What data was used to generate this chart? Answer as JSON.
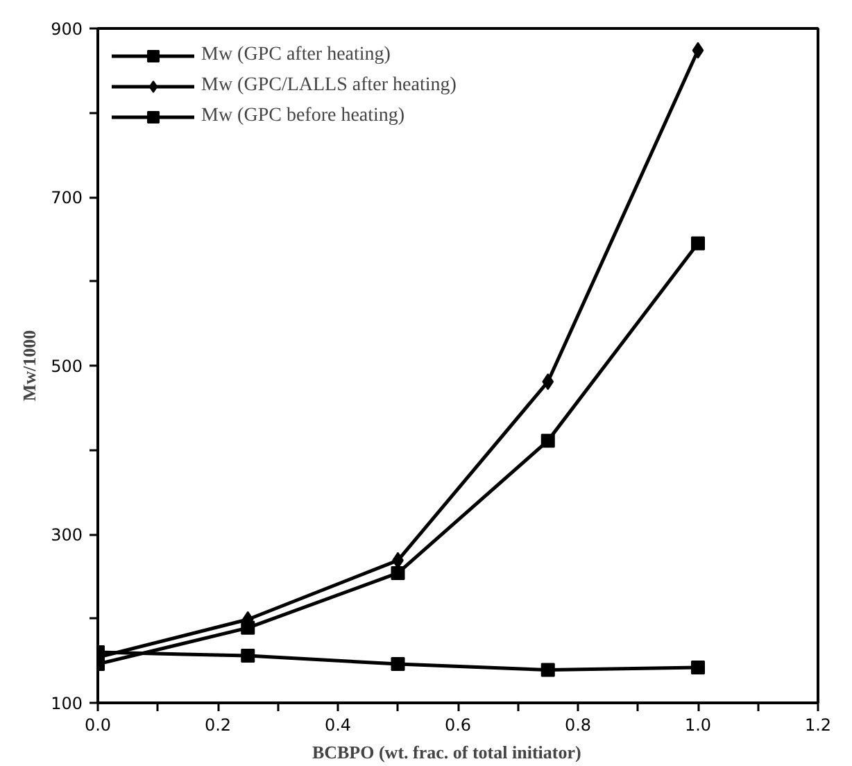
{
  "chart_data": {
    "type": "line",
    "xlabel": "BCBPO  (wt.  frac.  of  total  initiator)",
    "ylabel": "Mw/1000",
    "x": [
      0.0,
      0.25,
      0.5,
      0.75,
      1.0
    ],
    "series": [
      {
        "name": "Mw (GPC after heating)",
        "color": "#000000",
        "marker": "square",
        "values": [
          146,
          189,
          254,
          411,
          645
        ]
      },
      {
        "name": "Mw (GPC/LALLS after heating)",
        "color": "#000000",
        "marker": "diamond",
        "values": [
          154,
          199,
          269,
          481,
          874
        ]
      },
      {
        "name": "Mw (GPC before heating)",
        "color": "#000000",
        "marker": "square",
        "values": [
          160,
          156,
          146,
          139,
          142
        ]
      }
    ],
    "xlim": [
      0,
      1.2
    ],
    "ylim": [
      100,
      900
    ],
    "xticks": [
      {
        "value": 0,
        "label": "0.0"
      },
      {
        "value": 0.1,
        "label": null
      },
      {
        "value": 0.2,
        "label": "0.2"
      },
      {
        "value": 0.3,
        "label": null
      },
      {
        "value": 0.4,
        "label": "0.4"
      },
      {
        "value": 0.5,
        "label": null
      },
      {
        "value": 0.6,
        "label": "0.6"
      },
      {
        "value": 0.7,
        "label": null
      },
      {
        "value": 0.8,
        "label": "0.8"
      },
      {
        "value": 0.9,
        "label": null
      },
      {
        "value": 1.0,
        "label": "1.0"
      },
      {
        "value": 1.1,
        "label": null
      },
      {
        "value": 1.2,
        "label": "1.2"
      }
    ],
    "yticks": [
      100,
      {
        "value": 200,
        "label": null
      },
      300,
      {
        "value": 400,
        "label": null
      },
      500,
      {
        "value": 600,
        "label": null
      },
      700,
      {
        "value": 800,
        "label": null
      },
      900
    ],
    "grid": false,
    "legend": "top left",
    "line_style": "solid"
  }
}
